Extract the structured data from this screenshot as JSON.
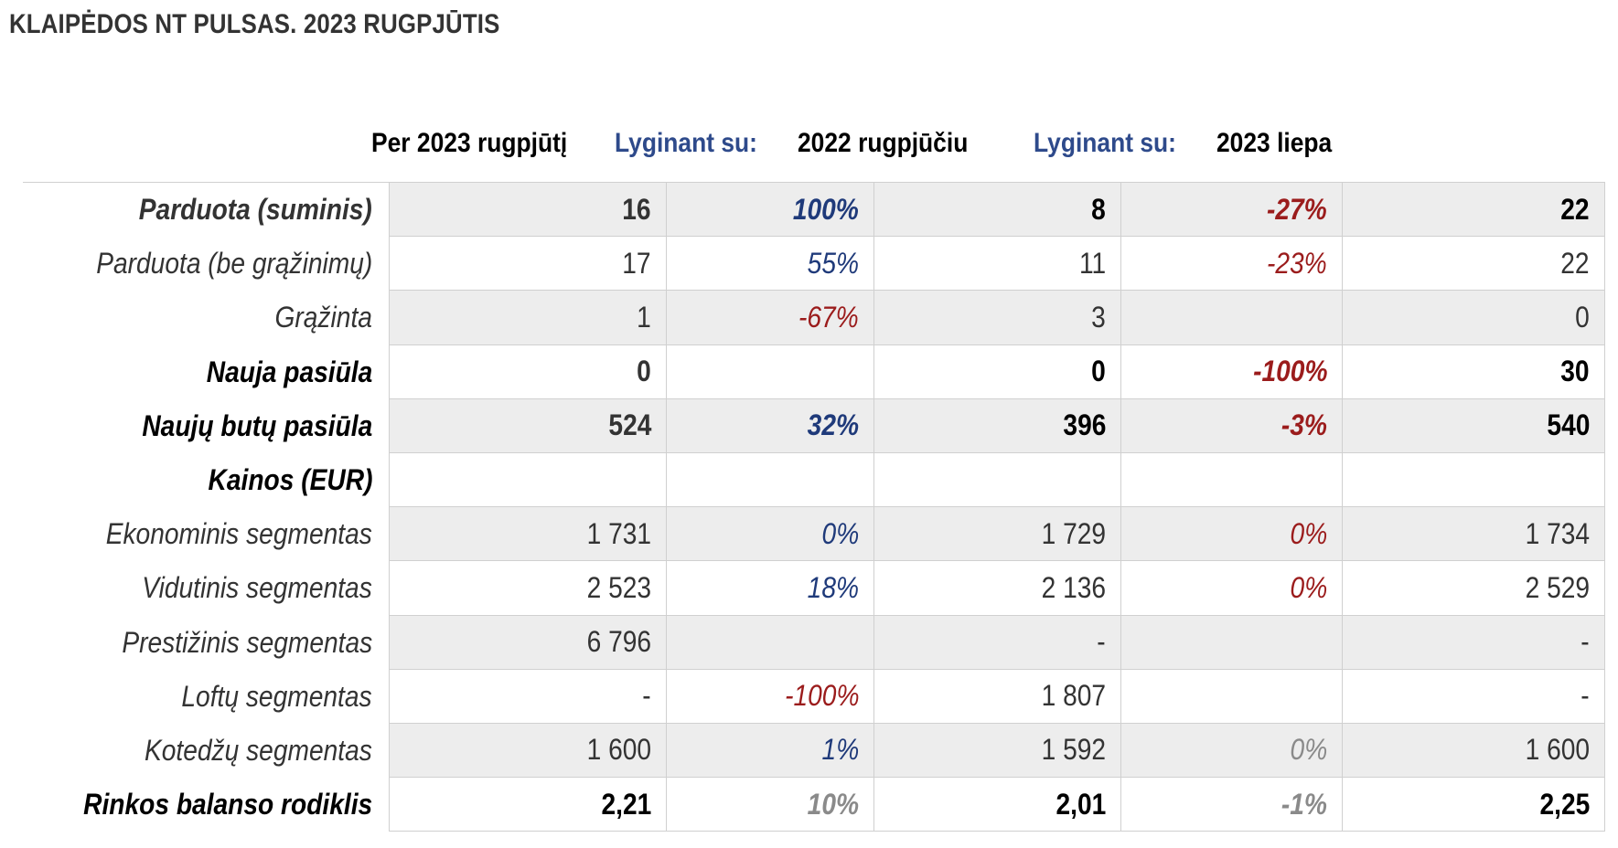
{
  "title": "KLAIPĖDOS NT PULSAS. 2023 RUGPJŪTIS",
  "headers": {
    "col1": "Per 2023 rugpjūtį",
    "col2": "Lyginant su:",
    "col3": "2022 rugpjūčiu",
    "col4": "Lyginant su:",
    "col5": "2023 liepa"
  },
  "colors": {
    "positive": "#1F3A7A",
    "negative": "#9B1C1C",
    "neutral": "#8A8A8A",
    "header_blue": "#2E4A8B",
    "shade": "#EDEDED"
  },
  "rows": [
    {
      "label": "Parduota (suminis)",
      "v1": "16",
      "c1": "100%",
      "v2": "8",
      "c2": "-27%",
      "v3": "22"
    },
    {
      "label": "Parduota (be grąžinimų)",
      "v1": "17",
      "c1": "55%",
      "v2": "11",
      "c2": "-23%",
      "v3": "22"
    },
    {
      "label": "Grąžinta",
      "v1": "1",
      "c1": "-67%",
      "v2": "3",
      "c2": "",
      "v3": "0"
    },
    {
      "label": "Nauja pasiūla",
      "v1": "0",
      "c1": "",
      "v2": "0",
      "c2": "-100%",
      "v3": "30"
    },
    {
      "label": "Naujų butų pasiūla",
      "v1": "524",
      "c1": "32%",
      "v2": "396",
      "c2": "-3%",
      "v3": "540"
    },
    {
      "label": "Kainos (EUR)",
      "v1": "",
      "c1": "",
      "v2": "",
      "c2": "",
      "v3": ""
    },
    {
      "label": "Ekonominis segmentas",
      "v1": "1 731",
      "c1": "0%",
      "v2": "1 729",
      "c2": "0%",
      "v3": "1 734"
    },
    {
      "label": "Vidutinis segmentas",
      "v1": "2 523",
      "c1": "18%",
      "v2": "2 136",
      "c2": "0%",
      "v3": "2 529"
    },
    {
      "label": "Prestižinis segmentas",
      "v1": "6 796",
      "c1": "",
      "v2": "-",
      "c2": "",
      "v3": "-"
    },
    {
      "label": "Loftų segmentas",
      "v1": "-",
      "c1": "-100%",
      "v2": "1 807",
      "c2": "",
      "v3": "-"
    },
    {
      "label": "Kotedžų segmentas",
      "v1": "1 600",
      "c1": "1%",
      "v2": "1 592",
      "c2": "0%",
      "v3": "1 600"
    },
    {
      "label": "Rinkos balanso rodiklis",
      "v1": "2,21",
      "c1": "10%",
      "v2": "2,01",
      "c2": "-1%",
      "v3": "2,25"
    }
  ]
}
